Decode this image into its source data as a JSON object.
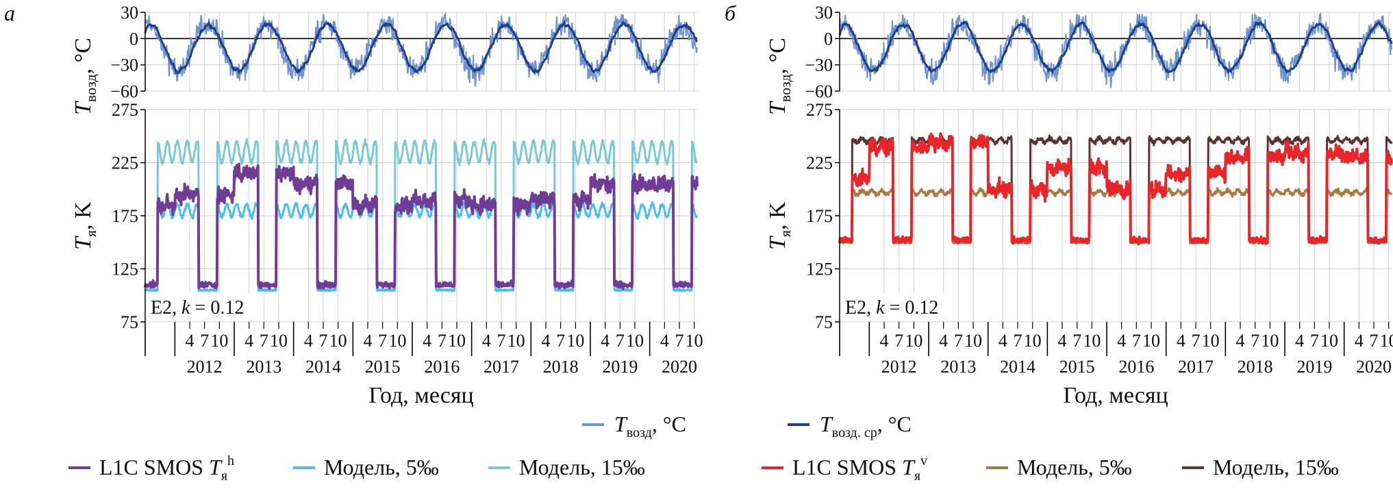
{
  "panels": [
    {
      "letter": "а",
      "annotation": "E2, k = 0.12",
      "ann_prefix": "E2, ",
      "ann_k": "k",
      "ann_suffix": " = 0.12",
      "series_colors": {
        "obs": "#6f3c96",
        "m5": "#4bbdec",
        "m15": "#79c8d8"
      }
    },
    {
      "letter": "б",
      "annotation": "E2, k = 0.12",
      "ann_prefix": "E2, ",
      "ann_k": "k",
      "ann_suffix": " = 0.12",
      "series_colors": {
        "obs": "#e8262a",
        "m5": "#a87a44",
        "m15": "#5a3232"
      }
    }
  ],
  "axes": {
    "top_ylabel_T": "T",
    "top_ylabel_sub": "возд",
    "top_ylabel_unit": ", °C",
    "bottom_ylabel_T": "T",
    "bottom_ylabel_sub": "я",
    "bottom_ylabel_unit": ", K",
    "xlabel": "Год, месяц",
    "month_ticks": [
      "4",
      "7",
      "10"
    ]
  },
  "legend_top": [
    {
      "T": "T",
      "sub": "возд",
      "unit": ", °C",
      "color": "#6f94d0"
    },
    {
      "T": "T",
      "sub": "возд. ср",
      "unit": ", °C",
      "color": "#1f3f8c"
    }
  ],
  "legend_bottom_a": [
    {
      "pre": "L1C SMOS ",
      "T": "T",
      "sub": "я",
      "sup": "h",
      "color": "#6f3c96"
    },
    {
      "pre": "Модель, 5‰",
      "color": "#4bbdec"
    },
    {
      "pre": "Модель, 15‰",
      "color": "#79c8d8"
    }
  ],
  "legend_bottom_b": [
    {
      "pre": "L1C SMOS ",
      "T": "T",
      "sub": "я",
      "sup": "v",
      "color": "#e8262a"
    },
    {
      "pre": "Модель, 5‰",
      "color": "#a87a44"
    },
    {
      "pre": "Модель, 15‰",
      "color": "#5a3232"
    }
  ],
  "chart_data": [
    {
      "type": "line",
      "panel": "а (top)",
      "ylabel": "Tвозд, °C",
      "ylim": [
        -60,
        30
      ],
      "yticks": [
        30,
        0,
        -30,
        -60
      ],
      "xlim": [
        2011.5,
        2020.8
      ],
      "years": [
        "2012",
        "2013",
        "2014",
        "2015",
        "2016",
        "2017",
        "2018",
        "2019",
        "2020"
      ],
      "series": [
        {
          "name": "Tвозд, °C",
          "color": "#6f94d0",
          "annual_range": [
            -45,
            20
          ]
        },
        {
          "name": "Tвозд. ср, °C",
          "color": "#1f3f8c",
          "annual_range": [
            -35,
            15
          ]
        }
      ]
    },
    {
      "type": "line",
      "panel": "а (bottom)",
      "ylabel": "Tя, K",
      "ylim": [
        75,
        275
      ],
      "yticks": [
        275,
        225,
        175,
        125,
        75
      ],
      "series": [
        {
          "name": "L1C SMOS Tя h",
          "color": "#6f3c96",
          "winter": [
            185,
            195,
            215,
            205,
            185,
            190,
            185,
            190,
            205,
            205
          ],
          "summer": 110
        },
        {
          "name": "Модель, 5‰",
          "color": "#4bbdec",
          "winter": 180,
          "summer": 105
        },
        {
          "name": "Модель, 15‰",
          "color": "#79c8d8",
          "winter": 235,
          "summer": 105
        }
      ]
    },
    {
      "type": "line",
      "panel": "б (top)",
      "ylabel": "Tвозд, °C",
      "ylim": [
        -60,
        30
      ],
      "yticks": [
        30,
        0,
        -30,
        -60
      ],
      "series": [
        {
          "name": "Tвозд, °C",
          "color": "#6f94d0",
          "annual_range": [
            -45,
            20
          ]
        },
        {
          "name": "Tвозд. ср, °C",
          "color": "#1f3f8c",
          "annual_range": [
            -35,
            15
          ]
        }
      ]
    },
    {
      "type": "line",
      "panel": "б (bottom)",
      "ylabel": "Tя, K",
      "ylim": [
        75,
        275
      ],
      "yticks": [
        275,
        225,
        175,
        125,
        75
      ],
      "series": [
        {
          "name": "L1C SMOS Tя v",
          "color": "#e8262a",
          "winter": [
            210,
            240,
            245,
            200,
            220,
            200,
            215,
            230,
            235,
            230
          ],
          "summer": 152
        },
        {
          "name": "Модель, 5‰",
          "color": "#a87a44",
          "winter": 197,
          "summer": 150
        },
        {
          "name": "Модель, 15‰",
          "color": "#5a3232",
          "winter": 246,
          "summer": 150
        }
      ]
    }
  ]
}
